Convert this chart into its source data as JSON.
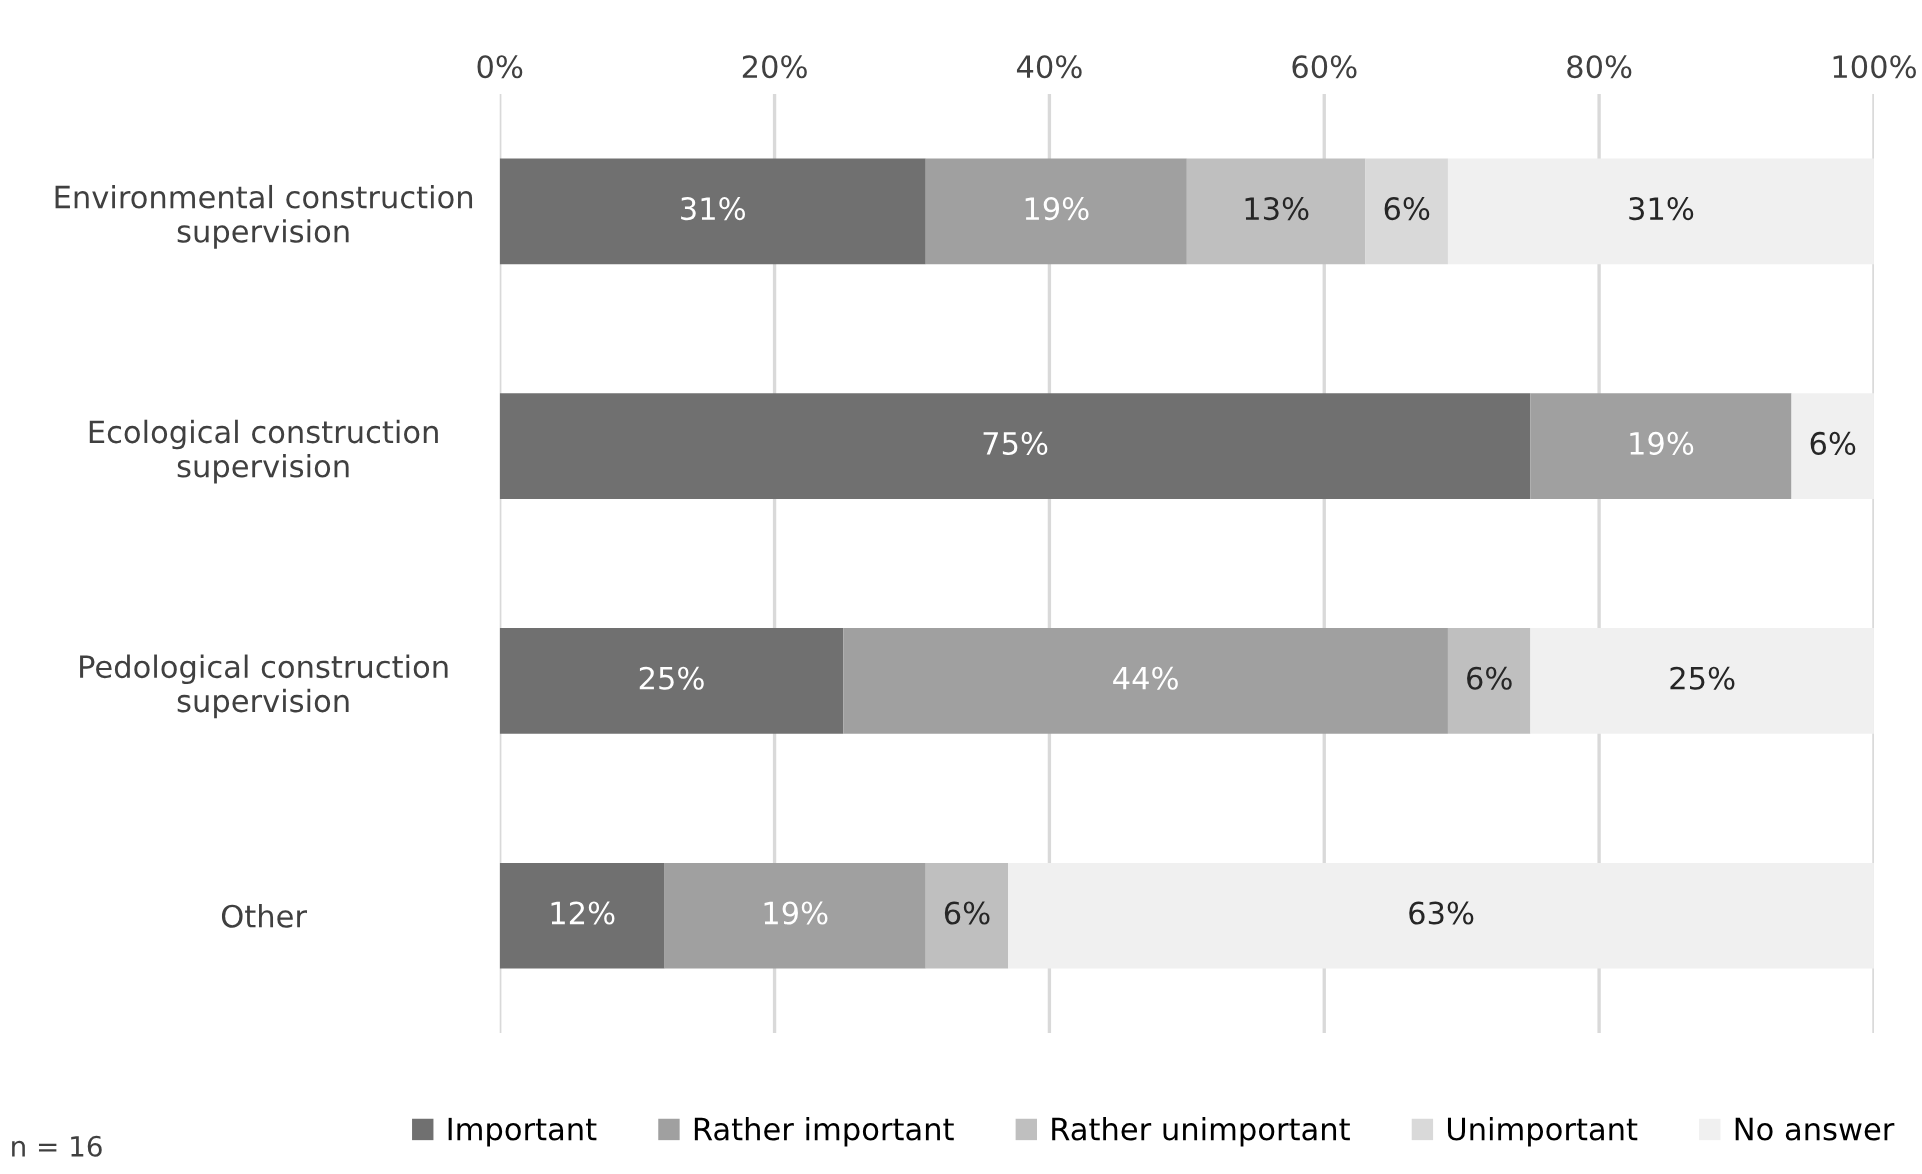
{
  "chart_data": {
    "type": "bar",
    "orientation": "horizontal",
    "stacked": true,
    "categories": [
      "Environmental construction\nsupervision",
      "Ecological construction\nsupervision",
      "Pedological construction\nsupervision",
      "Other"
    ],
    "series": [
      {
        "name": "Important",
        "color": "#707070",
        "values": [
          31,
          75,
          25,
          12
        ],
        "value_labels": [
          "31%",
          "75%",
          "25%",
          "12%"
        ]
      },
      {
        "name": "Rather important",
        "color": "#a0a0a0",
        "values": [
          19,
          19,
          44,
          19
        ],
        "value_labels": [
          "19%",
          "19%",
          "44%",
          "19%"
        ]
      },
      {
        "name": "Rather unimportant",
        "color": "#bfbfbf",
        "values": [
          13,
          null,
          6,
          6
        ],
        "value_labels": [
          "13%",
          null,
          "6%",
          "6%"
        ]
      },
      {
        "name": "Unimportant",
        "color": "#d9d9d9",
        "values": [
          6,
          null,
          null,
          null
        ],
        "value_labels": [
          "6%",
          null,
          null,
          null
        ]
      },
      {
        "name": "No answer",
        "color": "#f0f0f0",
        "values": [
          31,
          6,
          25,
          63
        ],
        "value_labels": [
          "31%",
          "6%",
          "25%",
          "63%"
        ]
      }
    ],
    "xlim": [
      0,
      100
    ],
    "xticks": [
      {
        "value": 0,
        "label": "0%"
      },
      {
        "value": 20,
        "label": "20%"
      },
      {
        "value": 40,
        "label": "40%"
      },
      {
        "value": 60,
        "label": "60%"
      },
      {
        "value": 80,
        "label": "80%"
      },
      {
        "value": 100,
        "label": "100%"
      }
    ],
    "grid": "x",
    "legend": "bottom",
    "annotations": [
      "n = 16"
    ]
  }
}
